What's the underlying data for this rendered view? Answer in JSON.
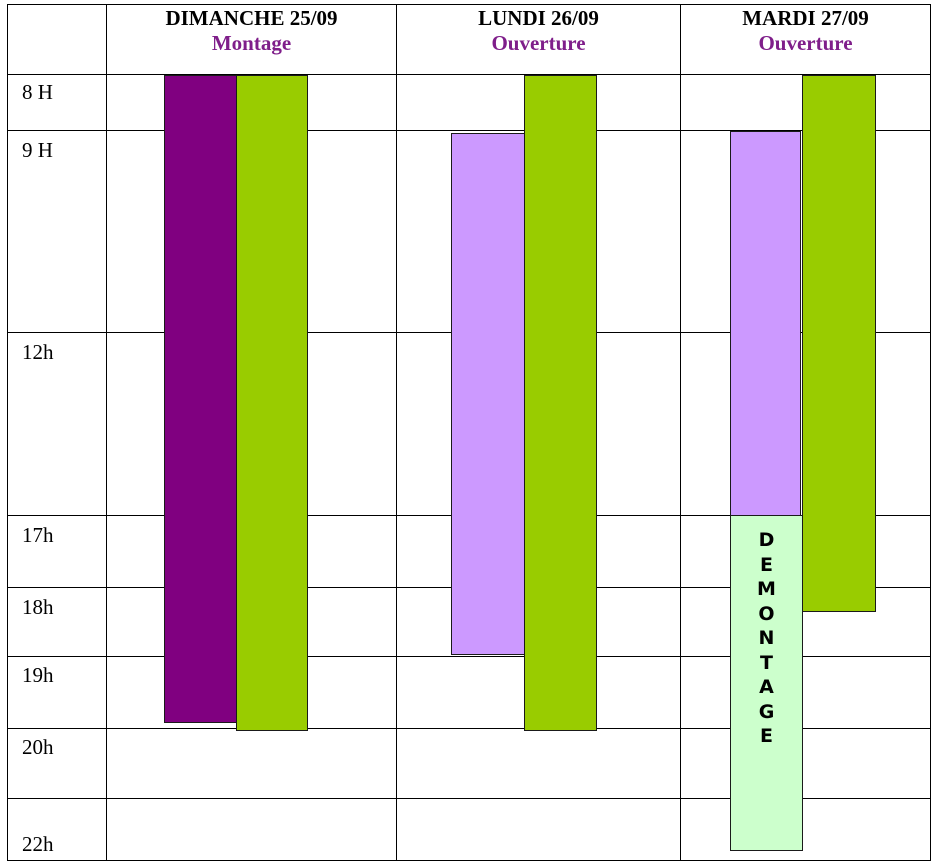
{
  "colors": {
    "header_subtitle": "#7f1e8a",
    "montage": "#800080",
    "ouverture_green": "#99cc00",
    "lilac": "#cc99ff",
    "demontage_bg": "#ccffcc"
  },
  "columns": [
    {
      "date": "DIMANCHE 25/09",
      "subtitle": "Montage"
    },
    {
      "date": "LUNDI 26/09",
      "subtitle": "Ouverture"
    },
    {
      "date": "MARDI 27/09",
      "subtitle": "Ouverture"
    }
  ],
  "times": [
    "8 H",
    "9 H",
    "12h",
    "17h",
    "18h",
    "19h",
    "20h",
    "22h"
  ],
  "demontage": {
    "label": "DEMONTAGE",
    "letters": [
      "D",
      "E",
      "M",
      "O",
      "N",
      "T",
      "A",
      "G",
      "E"
    ]
  }
}
